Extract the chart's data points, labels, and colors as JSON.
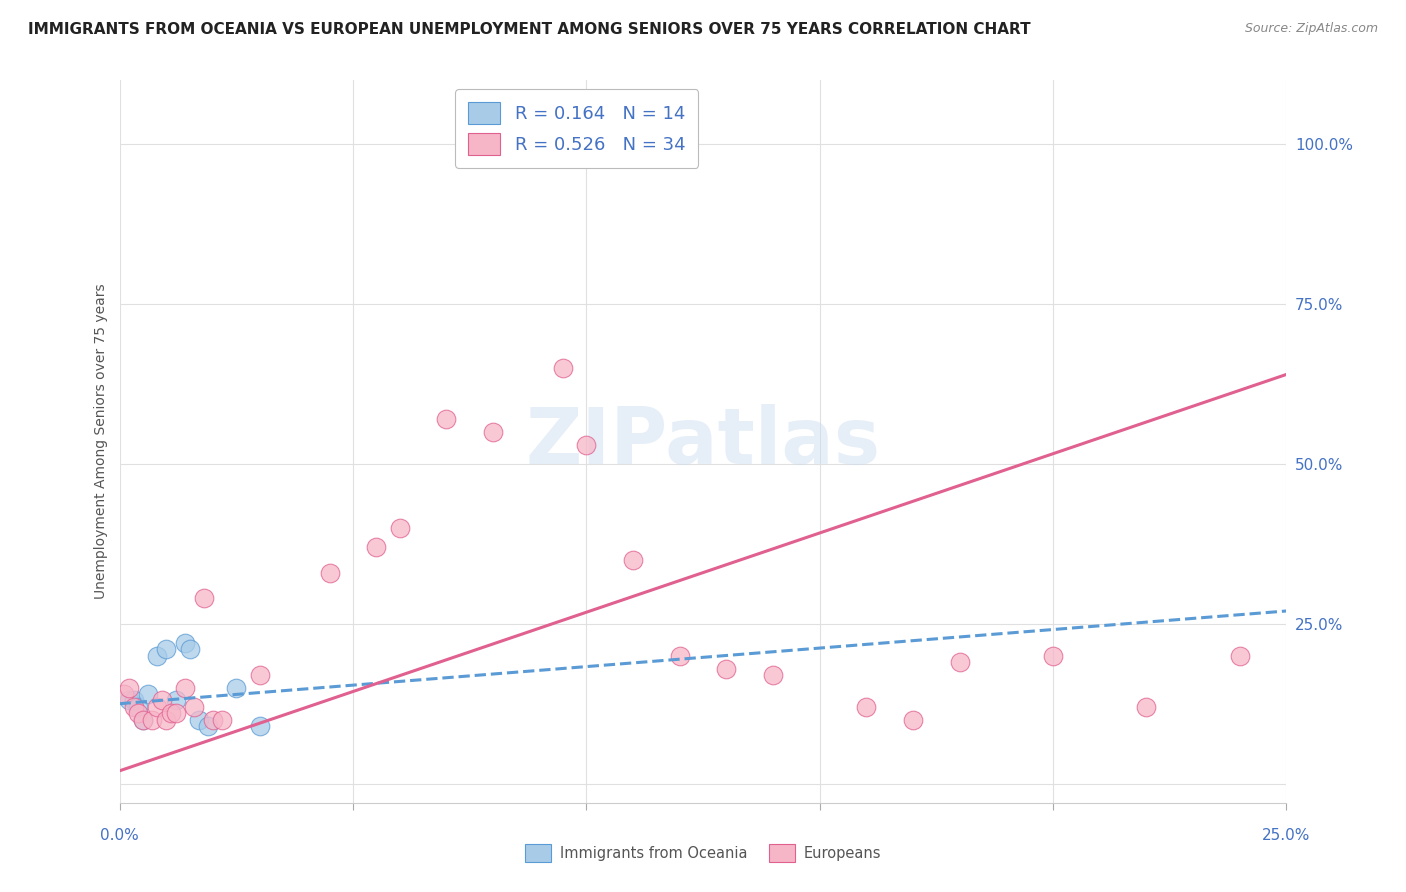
{
  "title": "IMMIGRANTS FROM OCEANIA VS EUROPEAN UNEMPLOYMENT AMONG SENIORS OVER 75 YEARS CORRELATION CHART",
  "source": "Source: ZipAtlas.com",
  "ylabel": "Unemployment Among Seniors over 75 years",
  "right_yticklabels": [
    "",
    "25.0%",
    "50.0%",
    "75.0%",
    "100.0%"
  ],
  "right_ytick_vals": [
    0.0,
    0.25,
    0.5,
    0.75,
    1.0
  ],
  "legend_blue_r": "0.164",
  "legend_blue_n": "14",
  "legend_pink_r": "0.526",
  "legend_pink_n": "34",
  "watermark": "ZIPatlas",
  "blue_fill": "#a8cce8",
  "pink_fill": "#f7b6c8",
  "blue_edge": "#5b9bd5",
  "pink_edge": "#e06090",
  "blue_line_color": "#5b9bd5",
  "pink_line_color": "#e06090",
  "blue_points": [
    [
      0.2,
      0.13
    ],
    [
      0.3,
      0.13
    ],
    [
      0.4,
      0.12
    ],
    [
      0.5,
      0.1
    ],
    [
      0.6,
      0.14
    ],
    [
      0.8,
      0.2
    ],
    [
      1.0,
      0.21
    ],
    [
      1.2,
      0.13
    ],
    [
      1.4,
      0.22
    ],
    [
      1.5,
      0.21
    ],
    [
      1.7,
      0.1
    ],
    [
      1.9,
      0.09
    ],
    [
      2.5,
      0.15
    ],
    [
      3.0,
      0.09
    ]
  ],
  "pink_points": [
    [
      0.1,
      0.14
    ],
    [
      0.2,
      0.15
    ],
    [
      0.3,
      0.12
    ],
    [
      0.4,
      0.11
    ],
    [
      0.5,
      0.1
    ],
    [
      0.7,
      0.1
    ],
    [
      0.8,
      0.12
    ],
    [
      0.9,
      0.13
    ],
    [
      1.0,
      0.1
    ],
    [
      1.1,
      0.11
    ],
    [
      1.2,
      0.11
    ],
    [
      1.4,
      0.15
    ],
    [
      1.6,
      0.12
    ],
    [
      1.8,
      0.29
    ],
    [
      2.0,
      0.1
    ],
    [
      2.2,
      0.1
    ],
    [
      3.0,
      0.17
    ],
    [
      4.5,
      0.33
    ],
    [
      5.5,
      0.37
    ],
    [
      6.0,
      0.4
    ],
    [
      7.0,
      0.57
    ],
    [
      8.0,
      0.55
    ],
    [
      9.5,
      0.65
    ],
    [
      10.0,
      0.53
    ],
    [
      11.0,
      0.35
    ],
    [
      12.0,
      0.2
    ],
    [
      13.0,
      0.18
    ],
    [
      14.0,
      0.17
    ],
    [
      16.0,
      0.12
    ],
    [
      17.0,
      0.1
    ],
    [
      18.0,
      0.19
    ],
    [
      20.0,
      0.2
    ],
    [
      22.0,
      0.12
    ],
    [
      24.0,
      0.2
    ]
  ],
  "xmin": 0.0,
  "xmax": 25.0,
  "ymin": -0.03,
  "ymax": 1.1,
  "blue_trend_x": [
    0.0,
    25.0
  ],
  "blue_trend_y": [
    0.125,
    0.27
  ],
  "pink_trend_x": [
    0.0,
    25.0
  ],
  "pink_trend_y": [
    0.02,
    0.64
  ],
  "grid_color": "#e0e0e0",
  "bg_color": "#ffffff",
  "title_color": "#222222",
  "source_color": "#888888",
  "ylabel_color": "#555555",
  "right_tick_color": "#4472c4",
  "xtick_color": "#4472c4",
  "marker_size": 180,
  "marker_alpha": 0.75
}
